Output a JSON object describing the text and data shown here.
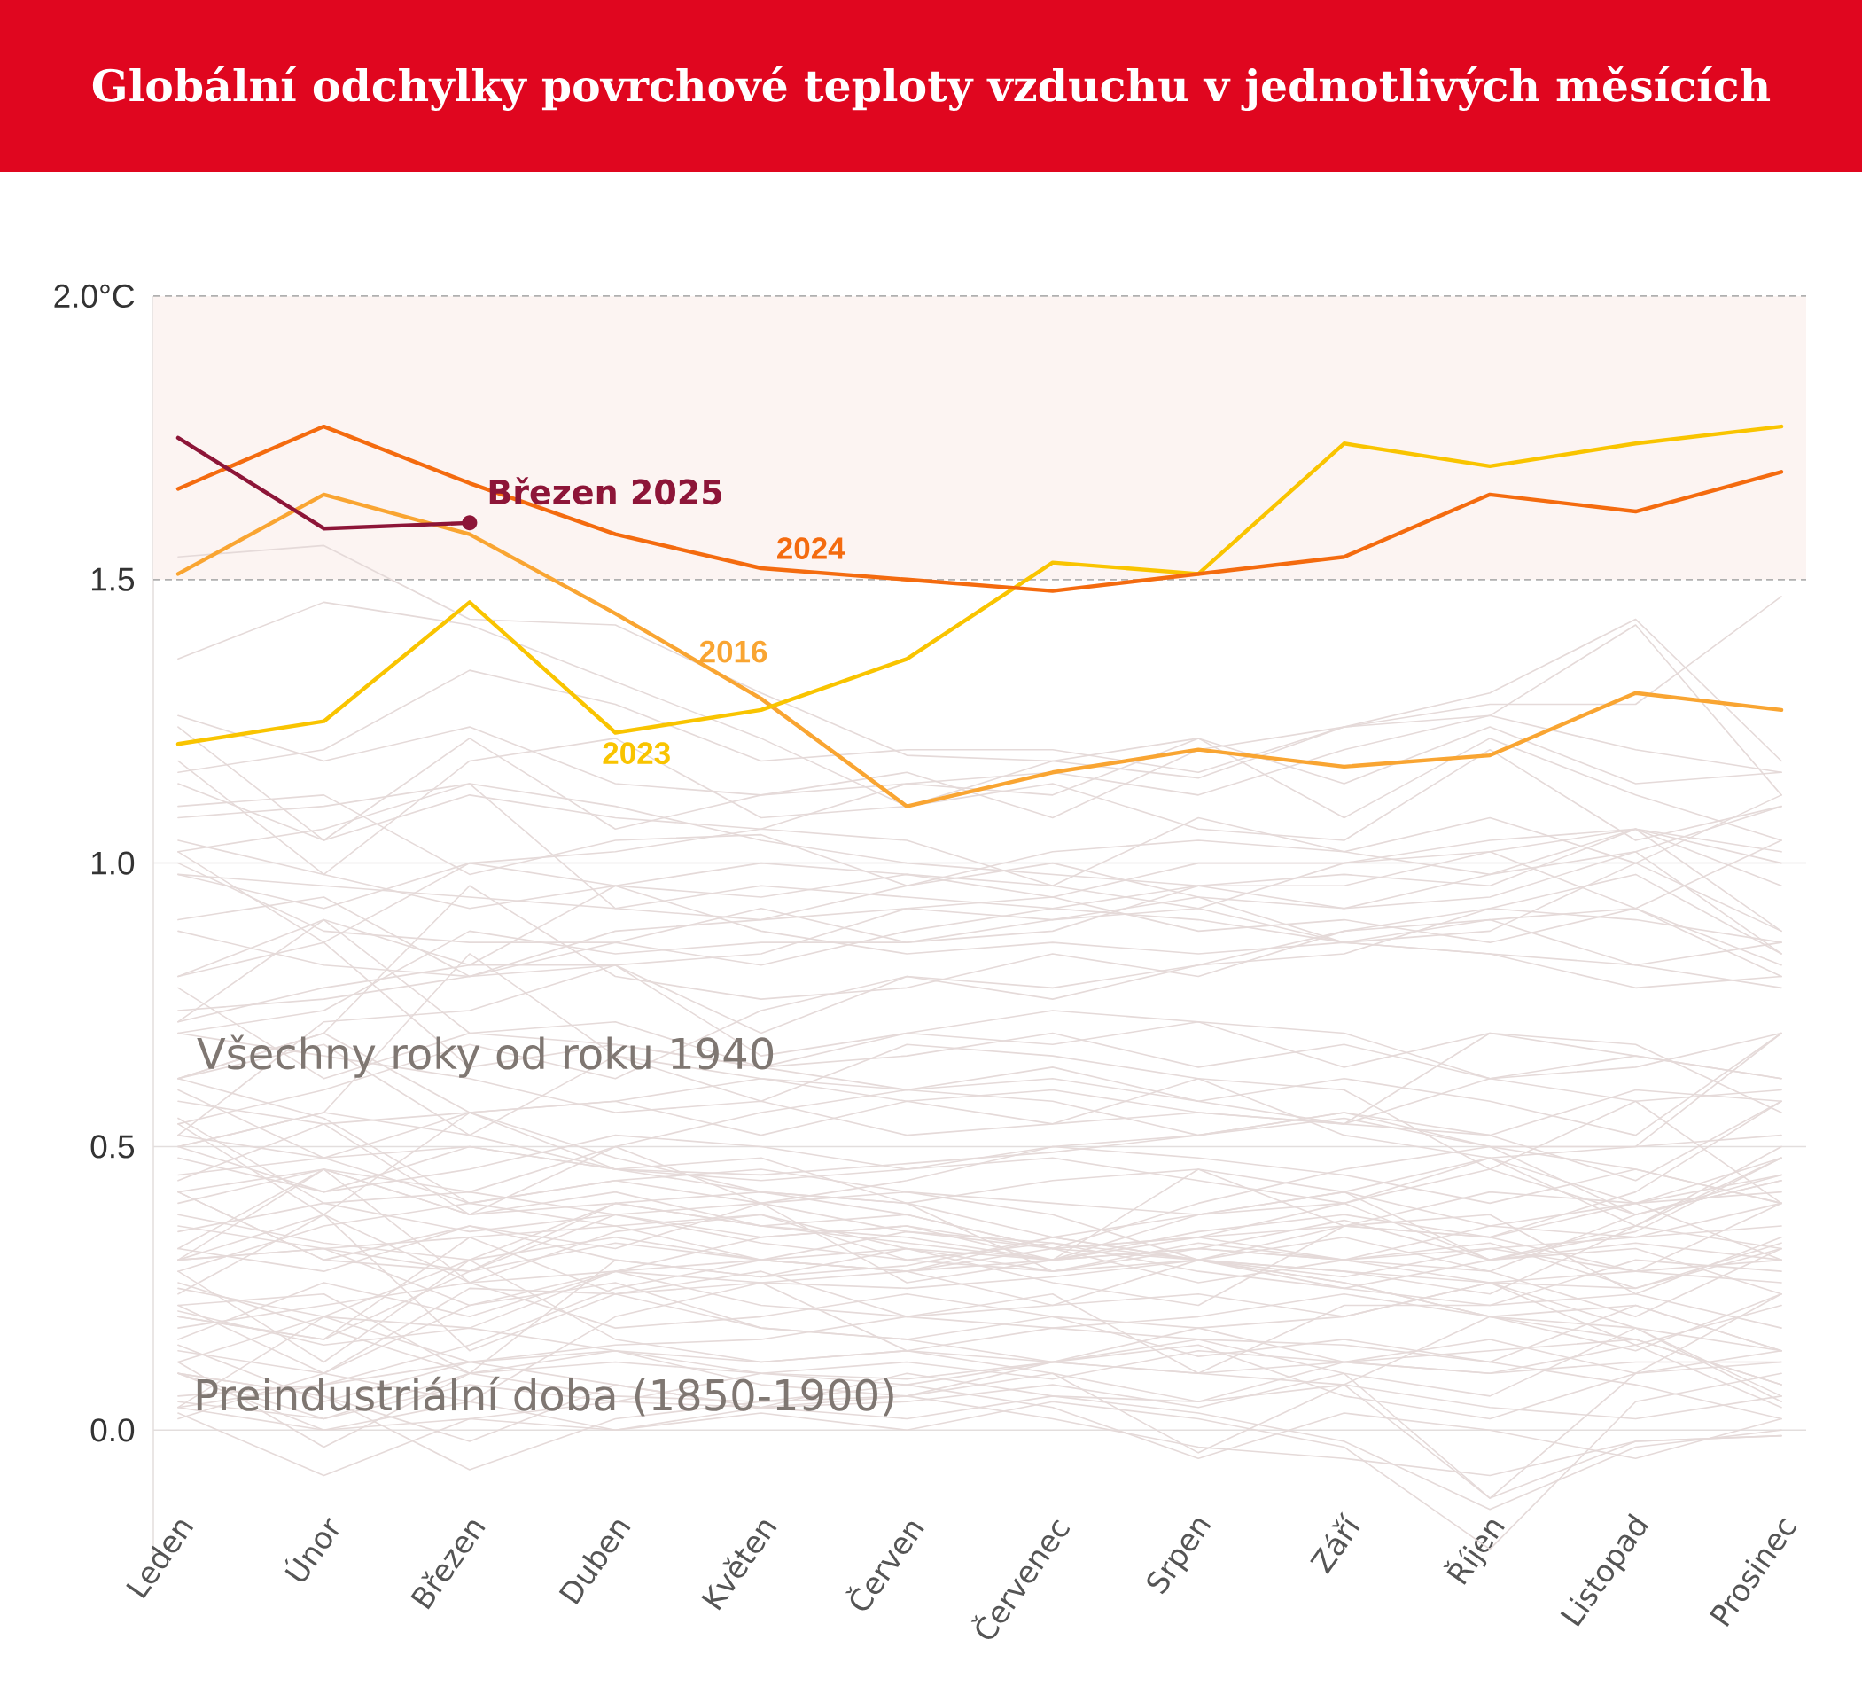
{
  "chart_data": {
    "type": "line",
    "title": "Globální odchylky povrchové teploty vzduchu v jednotlivých měsících",
    "categories": [
      "Leden",
      "Únor",
      "Březen",
      "Duben",
      "Květen",
      "Červen",
      "Červenec",
      "Srpen",
      "Září",
      "Říjen",
      "Listopad",
      "Prosinec"
    ],
    "ylim": [
      -0.22,
      2.0
    ],
    "yticks": [
      {
        "value": 0.0,
        "label": "0.0"
      },
      {
        "value": 0.5,
        "label": "0.5"
      },
      {
        "value": 1.0,
        "label": "1.0"
      },
      {
        "value": 1.5,
        "label": "1.5"
      },
      {
        "value": 2.0,
        "label": "2.0°C"
      }
    ],
    "grid": "y",
    "bands": [
      {
        "axis": "y",
        "from": 1.5,
        "to": 2.0,
        "color": "#fcf4f2"
      }
    ],
    "ref_lines": [
      {
        "axis": "y",
        "value": 1.5,
        "color": "#b0b0b0",
        "line_style": "dashed"
      },
      {
        "axis": "y",
        "value": 2.0,
        "color": "#b0b0b0",
        "line_style": "dashed"
      }
    ],
    "annotations": [
      {
        "text": "Březen 2025",
        "x": "Březen",
        "y": 1.6
      },
      "Všechny roky od roku 1940",
      "Preindustriální doba (1850-1900)"
    ],
    "series": [
      {
        "color": "#e5dad9",
        "values": [
          0.42,
          0.3,
          0.28,
          0.38,
          0.4,
          0.35,
          0.33,
          0.3,
          0.36,
          0.42,
          0.4,
          0.45
        ]
      },
      {
        "color": "#e5dad9",
        "values": [
          0.45,
          0.48,
          0.4,
          0.44,
          0.46,
          0.42,
          0.4,
          0.38,
          0.42,
          0.3,
          0.36,
          0.5
        ]
      },
      {
        "color": "#e5dad9",
        "values": [
          0.55,
          0.4,
          0.35,
          0.38,
          0.33,
          0.3,
          0.28,
          0.3,
          0.27,
          0.32,
          0.34,
          0.36
        ]
      },
      {
        "color": "#e5dad9",
        "values": [
          0.3,
          0.38,
          0.26,
          0.35,
          0.38,
          0.32,
          0.3,
          0.34,
          0.4,
          0.46,
          0.38,
          0.44
        ]
      },
      {
        "color": "#e5dad9",
        "values": [
          0.48,
          0.42,
          0.5,
          0.46,
          0.45,
          0.47,
          0.49,
          0.52,
          0.55,
          0.5,
          0.46,
          0.4
        ]
      },
      {
        "color": "#e5dad9",
        "values": [
          0.38,
          0.33,
          0.3,
          0.4,
          0.36,
          0.34,
          0.3,
          0.46,
          0.36,
          0.38,
          0.24,
          0.18
        ]
      },
      {
        "color": "#e5dad9",
        "values": [
          0.25,
          0.2,
          0.12,
          0.14,
          0.1,
          0.08,
          0.12,
          0.16,
          0.1,
          0.06,
          0.18,
          0.05
        ]
      },
      {
        "color": "#e5dad9",
        "values": [
          0.22,
          0.1,
          0.22,
          0.26,
          0.18,
          0.16,
          0.12,
          0.1,
          0.08,
          0.2,
          0.18,
          0.06
        ]
      },
      {
        "color": "#e5dad9",
        "values": [
          0.02,
          0.1,
          0.05,
          0.2,
          0.26,
          0.14,
          0.18,
          0.16,
          0.15,
          0.12,
          0.08,
          0.02
        ]
      },
      {
        "color": "#e5dad9",
        "values": [
          0.12,
          -0.03,
          0.1,
          0.14,
          0.08,
          0.06,
          0.1,
          0.05,
          0.08,
          -0.12,
          -0.02,
          -0.01
        ]
      },
      {
        "color": "#e5dad9",
        "values": [
          0.03,
          -0.08,
          0.02,
          0.05,
          0.04,
          0.02,
          0.06,
          0.03,
          -0.02,
          -0.14,
          -0.03,
          0.0
        ]
      },
      {
        "color": "#e5dad9",
        "values": [
          0.06,
          0.08,
          0.15,
          0.25,
          0.3,
          0.28,
          0.3,
          0.35,
          0.38,
          0.34,
          0.28,
          0.4
        ]
      },
      {
        "color": "#e5dad9",
        "values": [
          0.3,
          0.32,
          0.22,
          0.28,
          0.26,
          0.25,
          0.27,
          0.3,
          0.26,
          0.2,
          0.14,
          0.24
        ]
      },
      {
        "color": "#e5dad9",
        "values": [
          0.35,
          0.4,
          0.42,
          0.38,
          0.34,
          0.36,
          0.32,
          0.34,
          0.3,
          0.33,
          0.25,
          0.32
        ]
      },
      {
        "color": "#e5dad9",
        "values": [
          0.15,
          0.05,
          0.12,
          0.08,
          0.04,
          0.1,
          0.06,
          0.05,
          0.12,
          0.1,
          0.15,
          0.04
        ]
      },
      {
        "color": "#e5dad9",
        "values": [
          0.1,
          0.06,
          -0.07,
          0.02,
          0.05,
          0.08,
          0.04,
          -0.05,
          0.03,
          0.0,
          -0.05,
          0.02
        ]
      },
      {
        "color": "#e5dad9",
        "values": [
          0.04,
          0.0,
          0.05,
          0.0,
          0.03,
          0.0,
          0.05,
          0.02,
          -0.03,
          -0.21,
          0.05,
          0.1
        ]
      },
      {
        "color": "#e5dad9",
        "values": [
          0.12,
          0.2,
          0.18,
          0.28,
          0.34,
          0.36,
          0.3,
          0.38,
          0.4,
          0.3,
          0.35,
          0.48
        ]
      },
      {
        "color": "#e5dad9",
        "values": [
          0.62,
          0.55,
          0.4,
          0.36,
          0.38,
          0.3,
          0.33,
          0.28,
          0.25,
          0.3,
          0.33,
          0.3
        ]
      },
      {
        "color": "#e5dad9",
        "values": [
          0.32,
          0.28,
          0.36,
          0.3,
          0.27,
          0.29,
          0.34,
          0.3,
          0.25,
          0.22,
          0.24,
          0.34
        ]
      },
      {
        "color": "#e5dad9",
        "values": [
          0.22,
          0.24,
          0.1,
          0.3,
          0.27,
          0.32,
          0.28,
          0.33,
          0.3,
          0.28,
          0.2,
          0.32
        ]
      },
      {
        "color": "#e5dad9",
        "values": [
          0.3,
          0.46,
          0.38,
          0.4,
          0.36,
          0.33,
          0.3,
          0.32,
          0.37,
          0.3,
          0.32,
          0.24
        ]
      },
      {
        "color": "#e5dad9",
        "values": [
          0.36,
          0.32,
          0.28,
          0.33,
          0.3,
          0.28,
          0.32,
          0.26,
          0.3,
          0.32,
          0.28,
          0.26
        ]
      },
      {
        "color": "#e5dad9",
        "values": [
          0.24,
          0.38,
          0.14,
          0.24,
          0.26,
          0.28,
          0.34,
          0.38,
          0.42,
          0.48,
          0.4,
          0.3
        ]
      },
      {
        "color": "#e5dad9",
        "values": [
          0.26,
          0.18,
          0.1,
          0.06,
          0.05,
          0.06,
          0.02,
          -0.03,
          -0.05,
          -0.08,
          -0.02,
          -0.01
        ]
      },
      {
        "color": "#e5dad9",
        "values": [
          0.1,
          0.02,
          0.08,
          0.05,
          0.1,
          0.12,
          0.09,
          0.14,
          0.12,
          0.16,
          0.1,
          0.14
        ]
      },
      {
        "color": "#e5dad9",
        "values": [
          0.18,
          0.22,
          0.26,
          0.18,
          0.2,
          0.24,
          0.2,
          0.13,
          0.16,
          0.12,
          0.22,
          0.14
        ]
      },
      {
        "color": "#e5dad9",
        "values": [
          0.14,
          0.1,
          0.25,
          0.24,
          0.18,
          0.16,
          0.2,
          0.18,
          0.2,
          0.26,
          0.15,
          0.22
        ]
      },
      {
        "color": "#e5dad9",
        "values": [
          0.04,
          0.2,
          0.3,
          0.16,
          0.12,
          0.14,
          0.12,
          0.1,
          0.12,
          0.14,
          0.16,
          0.08
        ]
      },
      {
        "color": "#e5dad9",
        "values": [
          0.2,
          0.16,
          0.28,
          0.4,
          0.42,
          0.38,
          0.32,
          0.3,
          0.34,
          0.28,
          0.38,
          0.45
        ]
      },
      {
        "color": "#e5dad9",
        "values": [
          0.4,
          0.46,
          0.26,
          0.28,
          0.22,
          0.2,
          0.18,
          0.2,
          0.24,
          0.2,
          0.16,
          0.08
        ]
      },
      {
        "color": "#e5dad9",
        "values": [
          0.1,
          0.06,
          -0.02,
          0.08,
          0.04,
          0.06,
          0.12,
          0.18,
          0.12,
          0.1,
          0.12,
          0.12
        ]
      },
      {
        "color": "#e5dad9",
        "values": [
          0.04,
          0.08,
          0.12,
          0.15,
          0.16,
          0.2,
          0.22,
          0.24,
          0.2,
          0.26,
          0.25,
          0.33
        ]
      },
      {
        "color": "#e5dad9",
        "values": [
          0.5,
          0.56,
          0.52,
          0.46,
          0.42,
          0.4,
          0.34,
          0.3,
          0.26,
          0.2,
          0.22,
          0.14
        ]
      },
      {
        "color": "#e5dad9",
        "values": [
          0.05,
          0.02,
          0.1,
          0.12,
          0.1,
          0.09,
          0.12,
          0.15,
          0.06,
          0.02,
          0.1,
          0.12
        ]
      },
      {
        "color": "#e5dad9",
        "values": [
          0.21,
          0.15,
          0.18,
          0.14,
          0.12,
          0.14,
          0.1,
          -0.04,
          0.08,
          0.04,
          0.02,
          0.06
        ]
      },
      {
        "color": "#e5dad9",
        "values": [
          0.1,
          0.0,
          0.02,
          0.0,
          0.04,
          0.05,
          0.08,
          0.04,
          0.1,
          -0.12,
          0.1,
          0.24
        ]
      },
      {
        "color": "#e5dad9",
        "values": [
          0.28,
          0.36,
          0.4,
          0.44,
          0.4,
          0.42,
          0.38,
          0.3,
          0.28,
          0.24,
          0.36,
          0.32
        ]
      },
      {
        "color": "#e5dad9",
        "values": [
          0.3,
          0.32,
          0.34,
          0.24,
          0.28,
          0.2,
          0.24,
          0.1,
          0.22,
          0.22,
          0.3,
          0.28
        ]
      },
      {
        "color": "#e5dad9",
        "values": [
          0.2,
          0.16,
          0.34,
          0.36,
          0.3,
          0.35,
          0.32,
          0.4,
          0.46,
          0.5,
          0.5,
          0.7
        ]
      },
      {
        "color": "#e5dad9",
        "values": [
          0.5,
          0.42,
          0.46,
          0.52,
          0.5,
          0.46,
          0.5,
          0.48,
          0.45,
          0.4,
          0.46,
          0.4
        ]
      },
      {
        "color": "#e5dad9",
        "values": [
          0.6,
          0.48,
          0.56,
          0.48,
          0.42,
          0.4,
          0.44,
          0.46,
          0.42,
          0.36,
          0.4,
          0.48
        ]
      },
      {
        "color": "#e5dad9",
        "values": [
          0.16,
          0.26,
          0.2,
          0.28,
          0.3,
          0.32,
          0.26,
          0.22,
          0.36,
          0.34,
          0.42,
          0.58
        ]
      },
      {
        "color": "#e5dad9",
        "values": [
          0.7,
          0.66,
          0.62,
          0.56,
          0.58,
          0.52,
          0.54,
          0.62,
          0.6,
          0.46,
          0.58,
          0.4
        ]
      },
      {
        "color": "#e5dad9",
        "values": [
          0.42,
          0.3,
          0.36,
          0.32,
          0.4,
          0.26,
          0.3,
          0.32,
          0.3,
          0.26,
          0.18,
          0.14
        ]
      },
      {
        "color": "#e5dad9",
        "values": [
          0.28,
          0.12,
          0.3,
          0.34,
          0.3,
          0.28,
          0.22,
          0.3,
          0.28,
          0.26,
          0.28,
          0.3
        ]
      },
      {
        "color": "#e5dad9",
        "values": [
          0.42,
          0.46,
          0.38,
          0.42,
          0.36,
          0.38,
          0.32,
          0.34,
          0.36,
          0.34,
          0.4,
          0.42
        ]
      },
      {
        "color": "#e5dad9",
        "values": [
          0.44,
          0.54,
          0.38,
          0.5,
          0.56,
          0.6,
          0.64,
          0.58,
          0.62,
          0.58,
          0.52,
          0.7
        ]
      },
      {
        "color": "#e5dad9",
        "values": [
          0.78,
          0.62,
          0.7,
          0.68,
          0.64,
          0.6,
          0.58,
          0.52,
          0.56,
          0.5,
          0.38,
          0.44
        ]
      },
      {
        "color": "#e5dad9",
        "values": [
          0.32,
          0.46,
          0.42,
          0.5,
          0.4,
          0.44,
          0.5,
          0.52,
          0.56,
          0.52,
          0.44,
          0.58
        ]
      },
      {
        "color": "#e5dad9",
        "values": [
          0.5,
          0.56,
          0.84,
          0.66,
          0.62,
          0.6,
          0.62,
          0.58,
          0.54,
          0.7,
          0.66,
          0.62
        ]
      },
      {
        "color": "#e5dad9",
        "values": [
          0.62,
          0.68,
          0.52,
          0.66,
          0.58,
          0.68,
          0.66,
          0.62,
          0.52,
          0.48,
          0.5,
          0.52
        ]
      },
      {
        "color": "#e5dad9",
        "values": [
          0.58,
          0.54,
          0.56,
          0.46,
          0.48,
          0.4,
          0.28,
          0.32,
          0.3,
          0.36,
          0.34,
          0.4
        ]
      },
      {
        "color": "#e5dad9",
        "values": [
          0.52,
          0.48,
          0.5,
          0.46,
          0.44,
          0.46,
          0.48,
          0.44,
          0.4,
          0.48,
          0.36,
          0.48
        ]
      },
      {
        "color": "#e5dad9",
        "values": [
          0.54,
          0.38,
          0.56,
          0.58,
          0.52,
          0.58,
          0.54,
          0.56,
          0.54,
          0.62,
          0.66,
          0.62
        ]
      },
      {
        "color": "#e5dad9",
        "values": [
          0.72,
          0.9,
          0.7,
          0.72,
          0.64,
          0.7,
          0.74,
          0.72,
          0.64,
          0.7,
          0.68,
          0.56
        ]
      },
      {
        "color": "#e5dad9",
        "values": [
          0.62,
          0.7,
          0.56,
          0.58,
          0.62,
          0.58,
          0.6,
          0.56,
          0.54,
          0.52,
          0.6,
          0.58
        ]
      },
      {
        "color": "#e5dad9",
        "values": [
          0.54,
          0.6,
          0.68,
          0.62,
          0.74,
          0.8,
          0.78,
          0.82,
          0.88,
          0.92,
          0.9,
          0.86
        ]
      },
      {
        "color": "#e5dad9",
        "values": [
          1.1,
          1.12,
          0.98,
          1.04,
          1.05,
          0.96,
          1.0,
          0.94,
          0.86,
          0.84,
          0.78,
          0.8
        ]
      },
      {
        "color": "#e5dad9",
        "values": [
          0.8,
          0.86,
          0.64,
          0.68,
          0.64,
          0.66,
          0.7,
          0.64,
          0.68,
          0.62,
          0.64,
          0.7
        ]
      },
      {
        "color": "#e5dad9",
        "values": [
          0.52,
          0.72,
          0.74,
          0.82,
          0.66,
          0.7,
          0.68,
          0.72,
          0.7,
          0.62,
          0.58,
          0.6
        ]
      },
      {
        "color": "#e5dad9",
        "values": [
          0.7,
          0.74,
          0.88,
          0.84,
          0.86,
          0.86,
          0.9,
          0.92,
          0.86,
          0.88,
          1.0,
          0.88
        ]
      },
      {
        "color": "#e5dad9",
        "values": [
          1.02,
          1.06,
          1.14,
          0.92,
          0.9,
          0.92,
          0.94,
          0.88,
          0.9,
          0.86,
          0.92,
          0.82
        ]
      },
      {
        "color": "#e5dad9",
        "values": [
          1.0,
          0.88,
          0.86,
          0.86,
          0.92,
          0.86,
          0.88,
          0.96,
          0.96,
          1.02,
          0.92,
          1.04
        ]
      },
      {
        "color": "#e5dad9",
        "values": [
          0.9,
          0.94,
          0.8,
          0.82,
          0.7,
          0.8,
          0.76,
          0.82,
          0.84,
          0.92,
          0.98,
          0.84
        ]
      },
      {
        "color": "#e5dad9",
        "values": [
          1.02,
          0.86,
          1.0,
          0.96,
          0.94,
          0.98,
          0.96,
          0.92,
          1.0,
          1.02,
          1.06,
          0.96
        ]
      },
      {
        "color": "#e5dad9",
        "values": [
          0.8,
          0.9,
          0.82,
          0.82,
          0.84,
          0.92,
          0.9,
          0.94,
          0.92,
          0.98,
          1.02,
          1.1
        ]
      },
      {
        "color": "#e5dad9",
        "values": [
          1.18,
          0.98,
          0.92,
          0.96,
          0.88,
          0.84,
          0.86,
          0.84,
          0.86,
          0.84,
          0.82,
          0.78
        ]
      },
      {
        "color": "#e5dad9",
        "values": [
          0.62,
          0.7,
          0.96,
          0.8,
          0.76,
          0.78,
          0.84,
          0.8,
          0.88,
          0.9,
          0.92,
          0.8
        ]
      },
      {
        "color": "#e5dad9",
        "values": [
          0.88,
          0.82,
          0.8,
          0.88,
          0.9,
          0.96,
          1.02,
          1.04,
          1.02,
          0.98,
          1.06,
          1.02
        ]
      },
      {
        "color": "#e5dad9",
        "values": [
          1.08,
          1.1,
          1.14,
          1.1,
          1.04,
          1.0,
          0.98,
          0.96,
          0.92,
          0.94,
          1.02,
          0.84
        ]
      },
      {
        "color": "#e5dad9",
        "values": [
          0.74,
          0.76,
          0.8,
          0.86,
          0.82,
          0.88,
          0.92,
          0.9,
          0.86,
          0.9,
          0.82,
          0.86
        ]
      },
      {
        "color": "#e5dad9",
        "values": [
          0.72,
          0.78,
          0.82,
          0.96,
          1.0,
          0.98,
          0.94,
          1.0,
          1.0,
          1.04,
          1.06,
          0.88
        ]
      },
      {
        "color": "#e5dad9",
        "values": [
          0.98,
          0.96,
          0.94,
          0.92,
          0.96,
          0.94,
          0.92,
          0.96,
          0.98,
          0.96,
          1.06,
          1.0
        ]
      },
      {
        "color": "#e5dad9",
        "values": [
          0.98,
          0.92,
          1.0,
          1.02,
          1.06,
          1.04,
          0.96,
          1.08,
          1.02,
          1.08,
          1.0,
          1.12
        ]
      },
      {
        "color": "#e5dad9",
        "values": [
          1.14,
          1.04,
          1.22,
          1.06,
          1.12,
          1.16,
          1.08,
          1.2,
          1.24,
          1.28,
          1.28,
          1.47
        ]
      },
      {
        "color": "#e5dad9",
        "values": [
          1.36,
          1.46,
          1.42,
          1.32,
          1.22,
          1.1,
          1.18,
          1.22,
          1.14,
          1.24,
          1.14,
          1.16
        ]
      },
      {
        "color": "#e5dad9",
        "values": [
          1.04,
          0.98,
          1.18,
          1.22,
          1.08,
          1.1,
          1.14,
          1.06,
          1.04,
          1.2,
          1.04,
          1.1
        ]
      },
      {
        "color": "#e5dad9",
        "values": [
          1.16,
          1.2,
          1.34,
          1.28,
          1.18,
          1.2,
          1.2,
          1.16,
          1.24,
          1.3,
          1.43,
          1.18
        ]
      },
      {
        "color": "#e5dad9",
        "values": [
          1.54,
          1.56,
          1.43,
          1.42,
          1.3,
          1.19,
          1.18,
          1.15,
          1.24,
          1.26,
          1.42,
          1.12
        ]
      },
      {
        "color": "#e5dad9",
        "values": [
          1.24,
          1.04,
          1.12,
          1.08,
          1.06,
          1.14,
          1.16,
          1.12,
          1.2,
          1.26,
          1.2,
          1.16
        ]
      },
      {
        "color": "#e5dad9",
        "values": [
          1.26,
          1.18,
          1.24,
          1.14,
          1.12,
          1.14,
          1.12,
          1.22,
          1.08,
          1.22,
          1.12,
          1.04
        ]
      },
      {
        "name": "2016",
        "color": "#f9a532",
        "values": [
          1.51,
          1.65,
          1.58,
          1.44,
          1.29,
          1.1,
          1.16,
          1.2,
          1.17,
          1.19,
          1.3,
          1.27
        ]
      },
      {
        "name": "2023",
        "color": "#f9c400",
        "values": [
          1.21,
          1.25,
          1.46,
          1.23,
          1.27,
          1.36,
          1.53,
          1.51,
          1.74,
          1.7,
          1.74,
          1.77
        ]
      },
      {
        "name": "2024",
        "color": "#f46b0f",
        "values": [
          1.66,
          1.77,
          1.67,
          1.58,
          1.52,
          1.5,
          1.48,
          1.51,
          1.54,
          1.65,
          1.62,
          1.69
        ]
      },
      {
        "color": "#8d1538",
        "values": [
          1.75,
          1.59,
          1.6,
          null,
          null,
          null,
          null,
          null,
          null,
          null,
          null,
          null
        ]
      }
    ]
  }
}
